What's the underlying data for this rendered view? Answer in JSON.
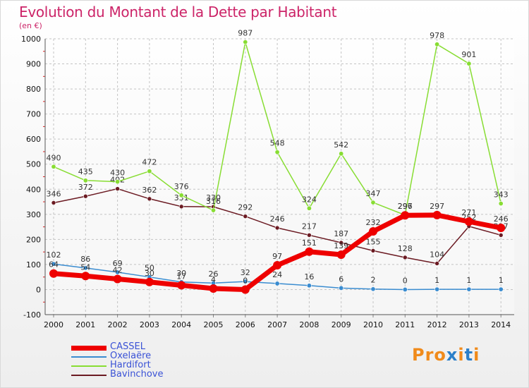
{
  "chart_data": {
    "type": "line",
    "title": "Evolution du Montant de la Dette par Habitant",
    "subtitle": "(en €)",
    "x": [
      "2000",
      "2001",
      "2002",
      "2003",
      "2004",
      "2005",
      "2006",
      "2007",
      "2008",
      "2009",
      "2010",
      "2011",
      "2012",
      "2013",
      "2014"
    ],
    "ylim": [
      -100,
      1000
    ],
    "yticks": [
      -100,
      0,
      100,
      200,
      300,
      400,
      500,
      600,
      700,
      800,
      900,
      1000
    ],
    "grid": true,
    "legend_position": "bottom-left",
    "series": [
      {
        "name": "CASSEL",
        "color": "#ee0000",
        "values": [
          64,
          54,
          42,
          30,
          17,
          4,
          0,
          97,
          151,
          139,
          232,
          296,
          297,
          271,
          246
        ]
      },
      {
        "name": "Oxelaëre",
        "color": "#3a8cd0",
        "values": [
          102,
          86,
          69,
          50,
          30,
          26,
          32,
          24,
          16,
          6,
          2,
          0,
          1,
          1,
          1
        ]
      },
      {
        "name": "Hardifort",
        "color": "#88dd33",
        "values": [
          490,
          435,
          430,
          472,
          376,
          316,
          987,
          548,
          324,
          542,
          347,
          297,
          978,
          901,
          343
        ]
      },
      {
        "name": "Bavinchove",
        "color": "#6b1a22",
        "values": [
          346,
          372,
          402,
          362,
          331,
          330,
          292,
          246,
          217,
          187,
          155,
          128,
          104,
          252,
          217
        ]
      }
    ]
  },
  "brand": {
    "part1": "Pro",
    "part2": "x",
    "part3": "i",
    "part4": "t",
    "part5": "i"
  }
}
